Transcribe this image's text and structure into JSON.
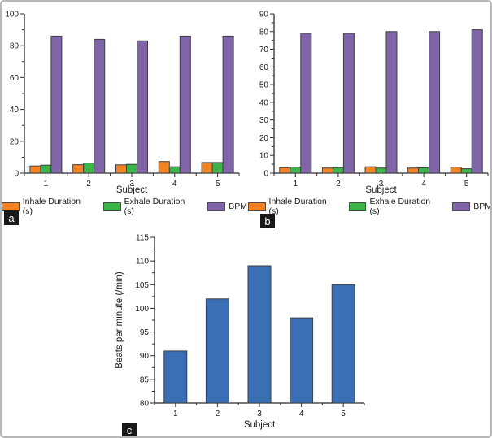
{
  "figure": {
    "panels": [
      {
        "label": "a"
      },
      {
        "label": "b"
      },
      {
        "label": "c"
      }
    ]
  },
  "colors": {
    "inhale_orange": "#F58220",
    "exhale_green": "#3BB54A",
    "bpm_purple": "#8064A8",
    "bpm_blue": "#3A6EB5",
    "bar_stroke": "#3f3f3f",
    "axis": "#2b2b2b",
    "text": "#1a1a1a"
  },
  "chart_data": [
    {
      "id": "a",
      "type": "bar",
      "categories": [
        "1",
        "2",
        "3",
        "4",
        "5"
      ],
      "series": [
        {
          "name": "Inhale Duration (s)",
          "color": "#F58220",
          "values": [
            4.5,
            5.3,
            5.2,
            7.3,
            6.7
          ]
        },
        {
          "name": "Exhale Duration (s)",
          "color": "#3BB54A",
          "values": [
            5.0,
            6.4,
            5.5,
            4.0,
            6.7
          ]
        },
        {
          "name": "BPM",
          "color": "#8064A8",
          "values": [
            86,
            84,
            83,
            86,
            86
          ]
        }
      ],
      "title": "",
      "xlabel": "Subject",
      "ylabel": "",
      "ylim": [
        0,
        100
      ],
      "ytick_major": 20,
      "ytick_minor": 10,
      "grid": false,
      "legend": true,
      "legend_position": "bottom"
    },
    {
      "id": "b",
      "type": "bar",
      "categories": [
        "1",
        "2",
        "3",
        "4",
        "5"
      ],
      "series": [
        {
          "name": "Inhale Duration (s)",
          "color": "#F58220",
          "values": [
            3.1,
            2.9,
            3.6,
            2.9,
            3.4
          ]
        },
        {
          "name": "Exhale Duration (s)",
          "color": "#3BB54A",
          "values": [
            3.4,
            3.1,
            2.9,
            3.0,
            2.5
          ]
        },
        {
          "name": "BPM",
          "color": "#8064A8",
          "values": [
            79,
            79,
            80,
            80,
            81
          ]
        }
      ],
      "title": "",
      "xlabel": "Subject",
      "ylabel": "",
      "ylim": [
        0,
        90
      ],
      "ytick_major": 10,
      "ytick_minor": 5,
      "grid": false,
      "legend": true,
      "legend_position": "bottom"
    },
    {
      "id": "c",
      "type": "bar",
      "categories": [
        "1",
        "2",
        "3",
        "4",
        "5"
      ],
      "series": [
        {
          "name": "Beats per minute",
          "color": "#3A6EB5",
          "values": [
            91,
            102,
            109,
            98,
            105
          ]
        }
      ],
      "title": "",
      "xlabel": "Subject",
      "ylabel": "Beats per minute (/min)",
      "ylim": [
        80,
        115
      ],
      "ytick_major": 5,
      "ytick_minor": 2.5,
      "grid": false,
      "legend": false,
      "legend_position": "none"
    }
  ]
}
